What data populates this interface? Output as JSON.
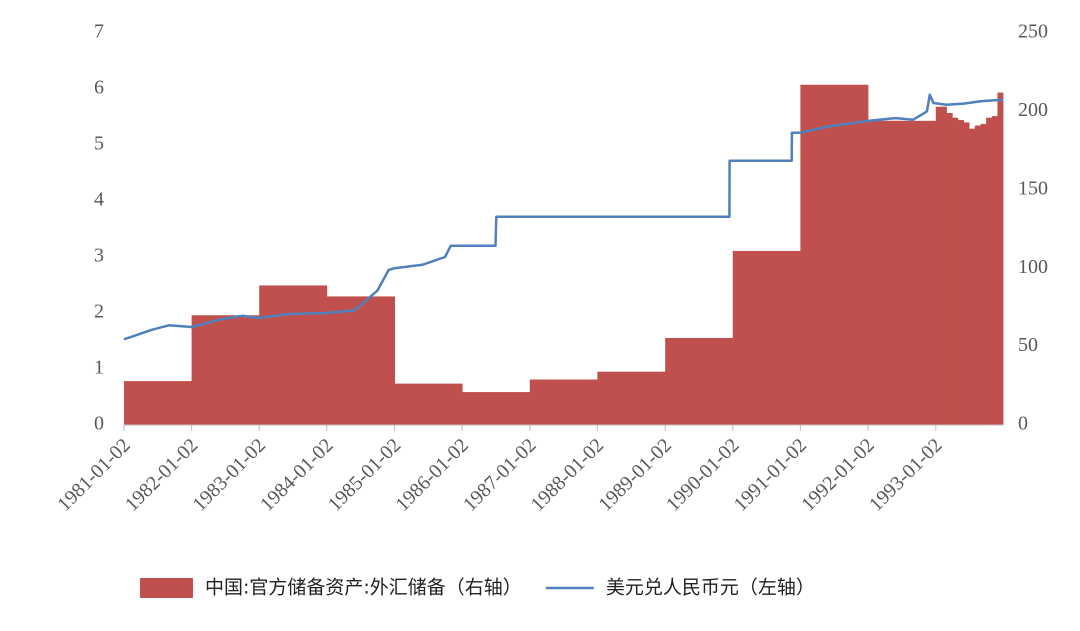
{
  "chart_data": {
    "type": "combo",
    "xlim": [
      "1981-01-02",
      "1993-12-31"
    ],
    "xticks": [
      "1981-01-02",
      "1982-01-02",
      "1983-01-02",
      "1984-01-02",
      "1985-01-02",
      "1986-01-02",
      "1987-01-02",
      "1988-01-02",
      "1989-01-02",
      "1990-01-02",
      "1991-01-02",
      "1992-01-02",
      "1993-01-02"
    ],
    "ylim": [
      0,
      7
    ],
    "yticks": [
      0,
      1,
      2,
      3,
      4,
      5,
      6,
      7
    ],
    "y2lim": [
      0,
      250
    ],
    "y2ticks": [
      0,
      50,
      100,
      150,
      200,
      250
    ],
    "legend": "bottom",
    "series": [
      {
        "name": "中国:官方储备资产:外汇储备（右轴）",
        "type": "bar",
        "axis": "y2",
        "color": "#c0504d",
        "bins": [
          "1981-01-02",
          "1982-01-02",
          "1983-01-02",
          "1984-01-02",
          "1985-01-02",
          "1986-01-02",
          "1987-01-02",
          "1988-01-02",
          "1989-01-02",
          "1990-01-02",
          "1991-01-02",
          "1992-01-02",
          "1993-01-02",
          "1993-02-01",
          "1993-03-01",
          "1993-04-01",
          "1993-05-01",
          "1993-06-01",
          "1993-07-01",
          "1993-08-01",
          "1993-09-01",
          "1993-10-01",
          "1993-11-01",
          "1993-12-01",
          "1993-12-31"
        ],
        "values": [
          28,
          70,
          89,
          82,
          26.4,
          21,
          29,
          34,
          55.5,
          111,
          217,
          194,
          203,
          203,
          199,
          196,
          194.5,
          193,
          189,
          191,
          192,
          196,
          197,
          212
        ]
      },
      {
        "name": "美元兑人民币元（左轴）",
        "type": "line",
        "axis": "y",
        "color": "#4f81bd",
        "x": [
          "1981-01-02",
          "1981-06-01",
          "1981-09-01",
          "1982-01-02",
          "1982-06-01",
          "1982-10-01",
          "1983-01-02",
          "1983-06-01",
          "1984-01-02",
          "1984-06-01",
          "1984-10-01",
          "1984-12-01",
          "1985-01-02",
          "1985-06-01",
          "1985-10-01",
          "1985-11-01",
          "1986-01-02",
          "1986-07-01",
          "1986-07-05",
          "1987-01-02",
          "1989-12-15",
          "1989-12-16",
          "1990-11-16",
          "1990-11-17",
          "1991-01-02",
          "1991-06-01",
          "1992-01-02",
          "1992-06-01",
          "1992-09-01",
          "1992-11-15",
          "1992-12-01",
          "1992-12-20",
          "1993-03-01",
          "1993-06-01",
          "1993-09-01",
          "1993-12-31"
        ],
        "values": [
          1.53,
          1.7,
          1.78,
          1.75,
          1.88,
          1.95,
          1.91,
          1.98,
          2.0,
          2.05,
          2.4,
          2.77,
          2.8,
          2.86,
          3.0,
          3.2,
          3.2,
          3.2,
          3.72,
          3.72,
          3.72,
          4.72,
          4.72,
          5.22,
          5.22,
          5.33,
          5.43,
          5.48,
          5.45,
          5.6,
          5.9,
          5.75,
          5.72,
          5.74,
          5.78,
          5.81
        ]
      }
    ]
  }
}
